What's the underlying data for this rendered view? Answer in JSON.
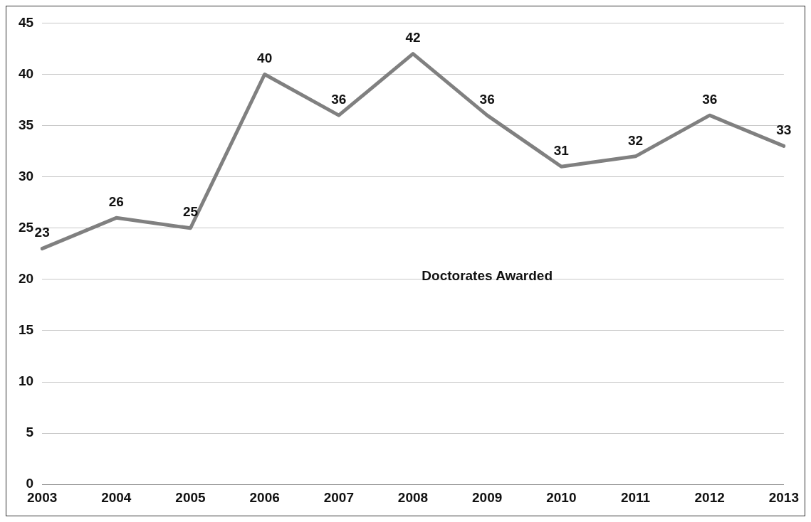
{
  "chart_data": {
    "type": "line",
    "categories": [
      "2003",
      "2004",
      "2005",
      "2006",
      "2007",
      "2008",
      "2009",
      "2010",
      "2011",
      "2012",
      "2013"
    ],
    "series": [
      {
        "name": "Doctorates Awarded",
        "color": "#808080",
        "values": [
          23,
          26,
          25,
          40,
          36,
          42,
          36,
          31,
          32,
          36,
          33
        ]
      }
    ],
    "ylim": [
      0,
      45
    ],
    "yticks": [
      0,
      5,
      10,
      15,
      20,
      25,
      30,
      35,
      40,
      45
    ],
    "grid": "y",
    "legend": false,
    "data_labels": true,
    "marker": "none",
    "line_style": "solid"
  }
}
